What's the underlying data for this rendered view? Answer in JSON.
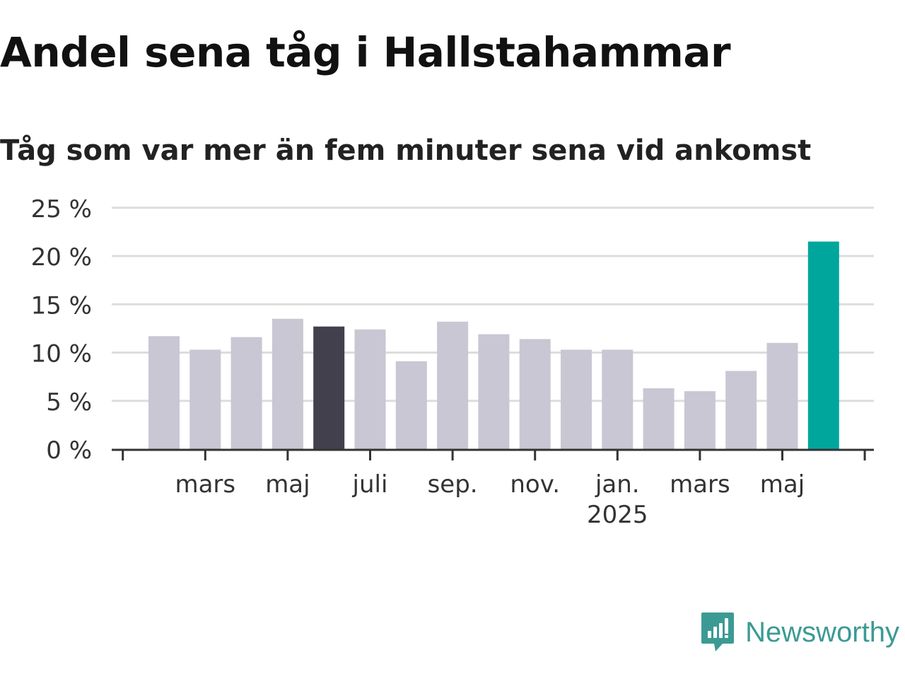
{
  "title": "Andel sena tåg i Hallstahammar",
  "subtitle": "Tåg som var mer än fem minuter sena vid ankomst",
  "brand": {
    "name": "Newsworthy",
    "icon": "newsworthy-logo-icon",
    "color": "#3c9a94"
  },
  "colors": {
    "default_bar": "#c8c7d3",
    "highlight_bar": "#42404d",
    "latest_bar": "#00a69c",
    "grid": "#dddddd",
    "axis": "#333333",
    "tick_label": "#333333"
  },
  "chart_data": {
    "type": "bar",
    "title": "Andel sena tåg i Hallstahammar",
    "subtitle": "Tåg som var mer än fem minuter sena vid ankomst",
    "xlabel": "",
    "ylabel": "",
    "ylim": [
      0,
      25
    ],
    "yticks": [
      0,
      5,
      10,
      15,
      20,
      25
    ],
    "ytick_labels": [
      "0 %",
      "5 %",
      "10 %",
      "15 %",
      "20 %",
      "25 %"
    ],
    "grid": "horizontal",
    "legend": "none",
    "categories": [
      "2024-02",
      "2024-03",
      "2024-04",
      "2024-05",
      "2024-06",
      "2024-07",
      "2024-08",
      "2024-09",
      "2024-10",
      "2024-11",
      "2024-12",
      "2025-01",
      "2025-02",
      "2025-03",
      "2025-04",
      "2025-05",
      "2025-06"
    ],
    "values": [
      11.7,
      10.3,
      11.6,
      13.5,
      12.7,
      12.4,
      9.1,
      13.2,
      11.9,
      11.4,
      10.3,
      10.3,
      6.3,
      6.0,
      8.1,
      11.0,
      21.5
    ],
    "highlight_index": 4,
    "latest_index": 16,
    "x_tick_labels": [
      {
        "label": "mars",
        "year": "",
        "index": 1
      },
      {
        "label": "maj",
        "year": "",
        "index": 3
      },
      {
        "label": "juli",
        "year": "",
        "index": 5
      },
      {
        "label": "sep.",
        "year": "",
        "index": 7
      },
      {
        "label": "nov.",
        "year": "",
        "index": 9
      },
      {
        "label": "jan.",
        "year": "2025",
        "index": 11
      },
      {
        "label": "mars",
        "year": "",
        "index": 13
      },
      {
        "label": "maj",
        "year": "",
        "index": 15
      }
    ]
  }
}
